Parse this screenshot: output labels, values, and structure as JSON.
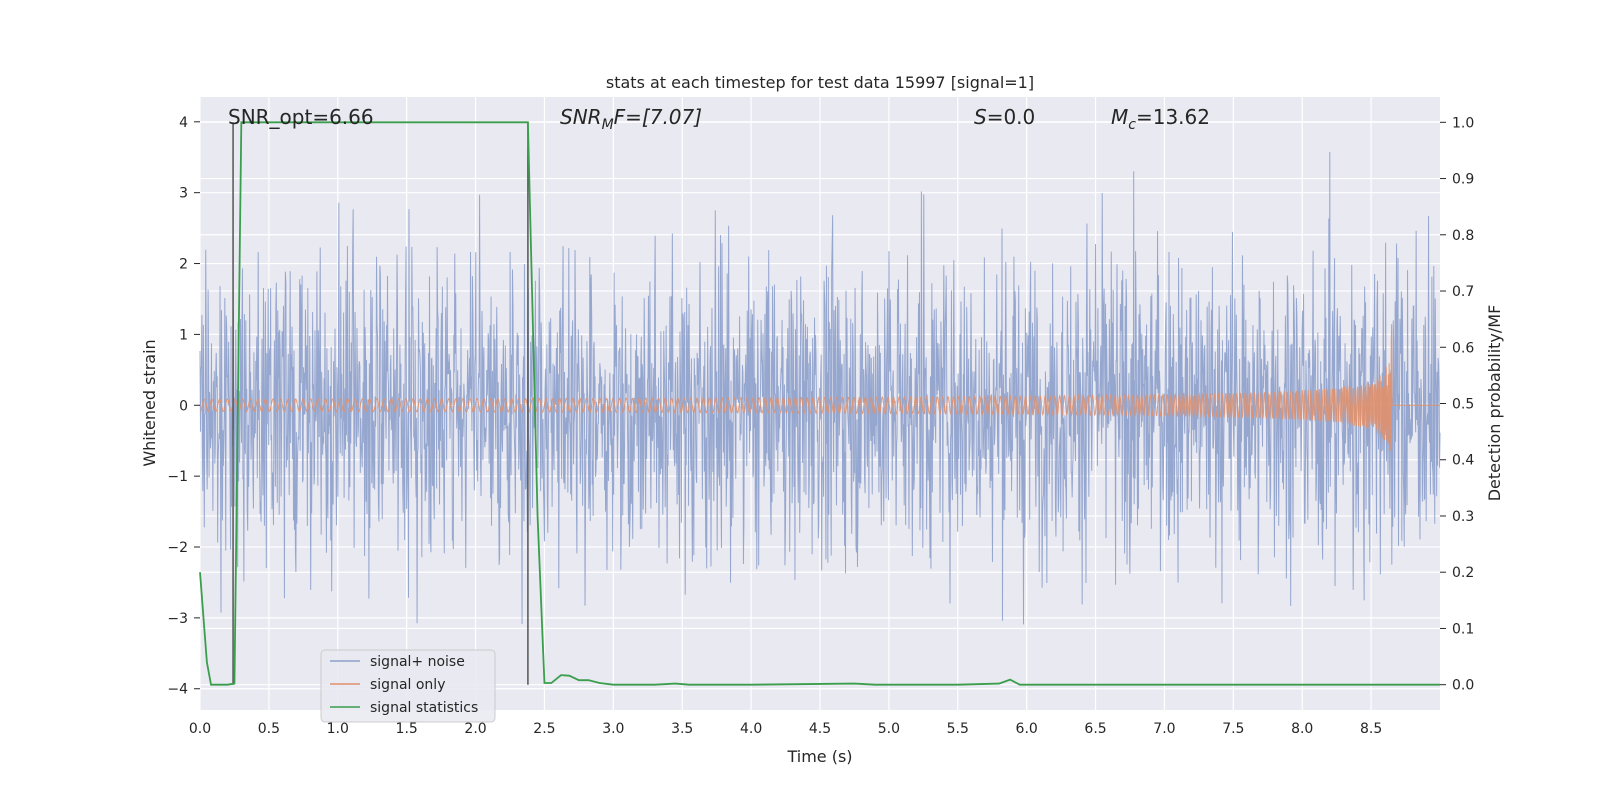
{
  "chart_data": {
    "type": "line",
    "title": "stats at each timestep for test data 15997 [signal=1]",
    "xlabel": "Time (s)",
    "ylabel_left": "Whitened strain",
    "ylabel_right": "Detection probability/MF",
    "xlim": [
      0.0,
      9.0
    ],
    "ylim_left": [
      -4.3,
      4.35
    ],
    "ylim_right": [
      -0.045,
      1.045
    ],
    "x_ticks": [
      0.0,
      0.5,
      1.0,
      1.5,
      2.0,
      2.5,
      3.0,
      3.5,
      4.0,
      4.5,
      5.0,
      5.5,
      6.0,
      6.5,
      7.0,
      7.5,
      8.0,
      8.5
    ],
    "x_tick_labels": [
      "0.0",
      "0.5",
      "1.0",
      "1.5",
      "2.0",
      "2.5",
      "3.0",
      "3.5",
      "4.0",
      "4.5",
      "5.0",
      "5.5",
      "6.0",
      "6.5",
      "7.0",
      "7.5",
      "8.0",
      "8.5"
    ],
    "y_left_ticks": [
      -4,
      -3,
      -2,
      -1,
      0,
      1,
      2,
      3,
      4
    ],
    "y_left_tick_labels": [
      "−4",
      "−3",
      "−2",
      "−1",
      "0",
      "1",
      "2",
      "3",
      "4"
    ],
    "y_right_ticks": [
      0.0,
      0.1,
      0.2,
      0.3,
      0.4,
      0.5,
      0.6,
      0.7,
      0.8,
      0.9,
      1.0
    ],
    "y_right_tick_labels": [
      "0.0",
      "0.1",
      "0.2",
      "0.3",
      "0.4",
      "0.5",
      "0.6",
      "0.7",
      "0.8",
      "0.9",
      "1.0"
    ],
    "annotations": {
      "snr_opt": "SNR_opt=6.66",
      "snr_mf_main": "SNR",
      "snr_mf_sub": "M",
      "snr_mf_rest": "F=[7.07]",
      "s_label": "S",
      "s_rest": "=0.0",
      "mc_label": "M",
      "mc_sub": "c",
      "mc_rest": "=13.62"
    },
    "legend": {
      "position": "lower-left",
      "entries": [
        "signal+ noise",
        "signal only",
        "signal statistics"
      ]
    },
    "colors": {
      "noise": "#8da0cb",
      "signal": "#e0906c",
      "stats": "#3a9e4c",
      "marker": "#555555",
      "background": "#e9e9f1",
      "grid": "#ffffff"
    },
    "series": [
      {
        "name": "signal+ noise",
        "description_ref": "whitened strain, noise amplitude approx ±3, occasional peaks to ±4",
        "duration": 9.0,
        "amplitude": 2.4
      },
      {
        "name": "signal only",
        "chirp_end": 8.65,
        "peak_amplitude": 1.4
      },
      {
        "name": "signal statistics",
        "x": [
          0.0,
          0.05,
          0.08,
          0.15,
          0.2,
          0.25,
          0.3,
          0.35,
          0.5,
          1.0,
          1.5,
          2.0,
          2.38,
          2.45,
          2.5,
          2.55,
          2.62,
          2.68,
          2.75,
          2.82,
          2.9,
          3.0,
          3.3,
          3.45,
          3.55,
          4.0,
          4.75,
          4.9,
          5.5,
          5.8,
          5.88,
          5.95,
          6.5,
          7.0,
          8.0,
          9.0
        ],
        "values": [
          0.2,
          0.04,
          0.0,
          0.0,
          0.0,
          0.002,
          1.0,
          1.0,
          1.0,
          1.0,
          1.0,
          1.0,
          1.0,
          0.3,
          0.003,
          0.003,
          0.017,
          0.016,
          0.008,
          0.008,
          0.003,
          0.0,
          0.0,
          0.002,
          0.0,
          0.0,
          0.002,
          0.0,
          0.0,
          0.002,
          0.009,
          0.0,
          0.0,
          0.0,
          0.0,
          0.0
        ]
      }
    ],
    "vertical_markers": [
      0.24,
      2.38
    ]
  }
}
